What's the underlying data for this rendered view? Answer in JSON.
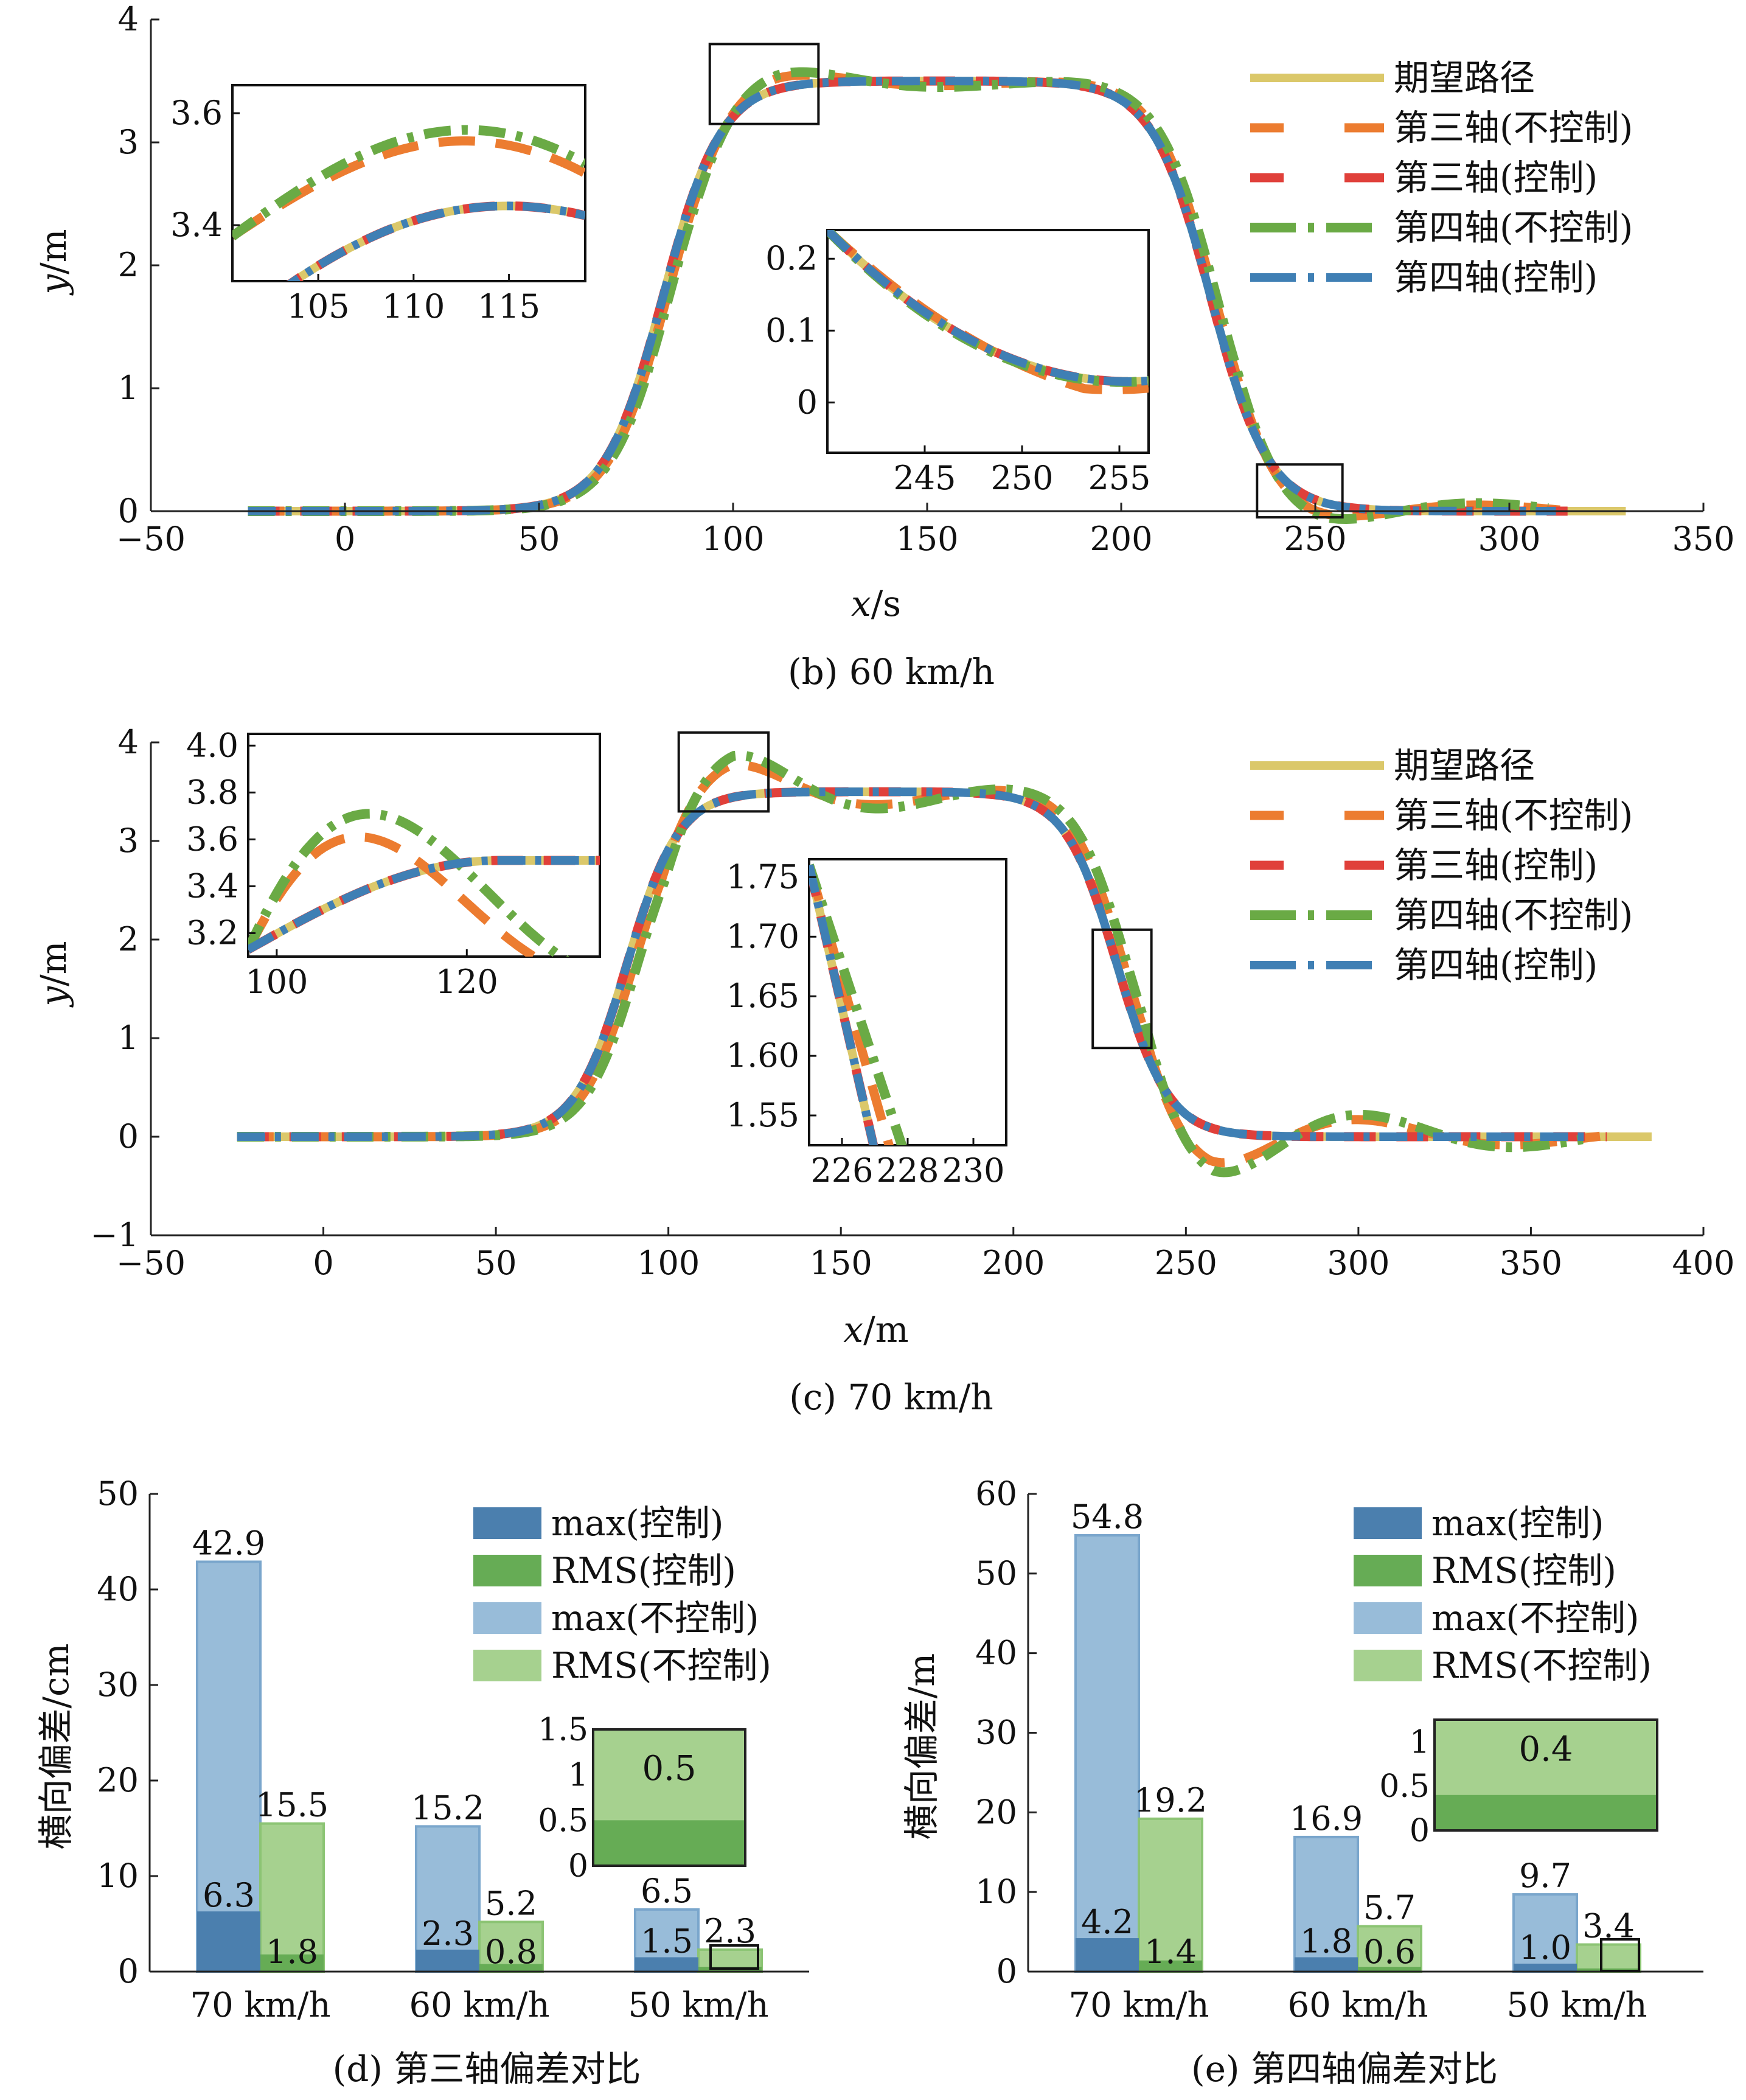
{
  "colors": {
    "desired": "#dbc86a",
    "axle3_uncontrolled": "#ec7c30",
    "axle3_controlled": "#e0403a",
    "axle4_uncontrolled": "#6aaa45",
    "axle4_controlled": "#3f7fb4",
    "bar_max_ctrl": "#4b7fae",
    "bar_rms_ctrl": "#66ac55",
    "bar_max_unctrl": "#98bcd9",
    "bar_rms_unctrl": "#a6d18f"
  },
  "chart_data": [
    {
      "id": "b",
      "type": "line",
      "caption": "(b) 60 km/h",
      "xlabel_var": "x",
      "xlabel_unit": "/s",
      "ylabel_var": "y",
      "ylabel_unit": "/m",
      "xlim": [
        -50,
        350
      ],
      "ylim": [
        0,
        4
      ],
      "xticks": [
        "−50",
        "0",
        "50",
        "100",
        "150",
        "200",
        "250",
        "300",
        "350"
      ],
      "yticks": [
        "0",
        "1",
        "2",
        "3",
        "4"
      ],
      "legend": [
        "期望路径",
        "第三轴(不控制)",
        "第三轴(控制)",
        "第四轴(不控制)",
        "第四轴(控制)"
      ],
      "lane_change": {
        "up_center": 82,
        "down_center": 223,
        "height": 3.5,
        "x_start": -25,
        "x_end": 330
      },
      "series": [
        {
          "name": "期望路径",
          "x_end": 330,
          "overshoot": 0,
          "lag": 0
        },
        {
          "name": "第三轴(不控制)",
          "x_end": 315,
          "overshoot": 0.1,
          "lag": 1
        },
        {
          "name": "第三轴(控制)",
          "x_end": 315,
          "overshoot": 0,
          "lag": 0
        },
        {
          "name": "第四轴(不控制)",
          "x_end": 310,
          "overshoot": 0.13,
          "lag": 1.5
        },
        {
          "name": "第四轴(控制)",
          "x_end": 312,
          "overshoot": 0,
          "lag": 0
        }
      ],
      "insets": [
        {
          "xticks": [
            "105",
            "110",
            "115"
          ],
          "yticks": [
            "3.4",
            "3.6"
          ]
        },
        {
          "xticks": [
            "245",
            "250",
            "255"
          ],
          "yticks": [
            "0",
            "0.1",
            "0.2"
          ]
        }
      ]
    },
    {
      "id": "c",
      "type": "line",
      "caption": "(c) 70 km/h",
      "xlabel_var": "x",
      "xlabel_unit": "/m",
      "ylabel_var": "y",
      "ylabel_unit": "/m",
      "xlim": [
        -50,
        400
      ],
      "ylim": [
        -1,
        4
      ],
      "xticks": [
        "−50",
        "0",
        "50",
        "100",
        "150",
        "200",
        "250",
        "300",
        "350",
        "400"
      ],
      "yticks": [
        "−1",
        "0",
        "1",
        "2",
        "3",
        "4"
      ],
      "legend": [
        "期望路径",
        "第三轴(不控制)",
        "第三轴(控制)",
        "第四轴(不控制)",
        "第四轴(控制)"
      ],
      "lane_change": {
        "up_center": 88,
        "down_center": 230,
        "height": 3.5,
        "x_start": -25,
        "x_end": 385
      },
      "series": [
        {
          "name": "期望路径",
          "x_end": 385,
          "overshoot": 0,
          "lag": 0
        },
        {
          "name": "第三轴(不控制)",
          "x_end": 370,
          "overshoot": 0.35,
          "lag": 2
        },
        {
          "name": "第三轴(控制)",
          "x_end": 372,
          "overshoot": 0,
          "lag": 0
        },
        {
          "name": "第四轴(不控制)",
          "x_end": 365,
          "overshoot": 0.45,
          "lag": 3
        },
        {
          "name": "第四轴(控制)",
          "x_end": 368,
          "overshoot": 0,
          "lag": 0
        }
      ],
      "insets": [
        {
          "xticks": [
            "100",
            "120"
          ],
          "yticks": [
            "3.2",
            "3.4",
            "3.6",
            "3.8",
            "4.0"
          ]
        },
        {
          "xticks": [
            "226",
            "228",
            "230"
          ],
          "yticks": [
            "1.55",
            "1.60",
            "1.65",
            "1.70",
            "1.75"
          ]
        }
      ]
    },
    {
      "id": "d",
      "type": "bar",
      "caption": "(d) 第三轴偏差对比",
      "ylabel": "横向偏差/cm",
      "ylim": [
        0,
        50
      ],
      "yticks": [
        "0",
        "10",
        "20",
        "30",
        "40",
        "50"
      ],
      "categories": [
        "70 km/h",
        "60 km/h",
        "50 km/h"
      ],
      "legend": [
        "max(控制)",
        "RMS(控制)",
        "max(不控制)",
        "RMS(不控制)"
      ],
      "series": [
        {
          "name": "max(不控制)",
          "values": [
            42.9,
            15.2,
            6.5
          ]
        },
        {
          "name": "RMS(不控制)",
          "values": [
            15.5,
            5.2,
            2.3
          ]
        },
        {
          "name": "max(控制)",
          "values": [
            6.3,
            2.3,
            1.5
          ]
        },
        {
          "name": "RMS(控制)",
          "values": [
            1.8,
            0.8,
            0.5
          ]
        }
      ],
      "labels": {
        "max_unctrl": [
          "42.9",
          "15.2",
          "6.5"
        ],
        "rms_unctrl": [
          "15.5",
          "5.2",
          "2.3"
        ],
        "max_ctrl": [
          "6.3",
          "2.3",
          "1.5"
        ],
        "rms_ctrl": [
          "1.8",
          "0.8",
          ""
        ]
      },
      "inset": {
        "yticks": [
          "0",
          "0.5",
          "1",
          "1.5"
        ],
        "ylim": [
          0,
          1.5
        ],
        "label": "0.5",
        "fg": 0.5,
        "bg": 1.5
      }
    },
    {
      "id": "e",
      "type": "bar",
      "caption": "(e) 第四轴偏差对比",
      "ylabel": "横向偏差/m",
      "ylim": [
        0,
        60
      ],
      "yticks": [
        "0",
        "10",
        "20",
        "30",
        "40",
        "50",
        "60"
      ],
      "categories": [
        "70 km/h",
        "60 km/h",
        "50 km/h"
      ],
      "legend": [
        "max(控制)",
        "RMS(控制)",
        "max(不控制)",
        "RMS(不控制)"
      ],
      "series": [
        {
          "name": "max(不控制)",
          "values": [
            54.8,
            16.9,
            9.7
          ]
        },
        {
          "name": "RMS(不控制)",
          "values": [
            19.2,
            5.7,
            3.4
          ]
        },
        {
          "name": "max(控制)",
          "values": [
            4.2,
            1.8,
            1.0
          ]
        },
        {
          "name": "RMS(控制)",
          "values": [
            1.4,
            0.6,
            0.4
          ]
        }
      ],
      "labels": {
        "max_unctrl": [
          "54.8",
          "16.9",
          "9.7"
        ],
        "rms_unctrl": [
          "19.2",
          "5.7",
          "3.4"
        ],
        "max_ctrl": [
          "4.2",
          "1.8",
          "1.0"
        ],
        "rms_ctrl": [
          "1.4",
          "0.6",
          ""
        ]
      },
      "inset": {
        "yticks": [
          "0",
          "0.5",
          "1"
        ],
        "ylim": [
          0,
          1.25
        ],
        "label": "0.4",
        "fg": 0.4,
        "bg": 1.25
      }
    }
  ]
}
